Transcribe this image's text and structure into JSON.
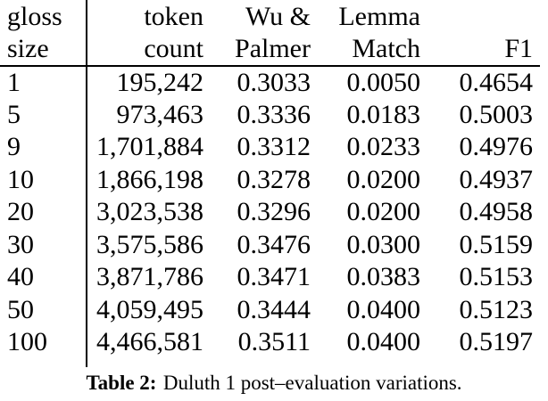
{
  "page": {
    "background_color": "#ffffff",
    "text_color": "#000000",
    "rule_color": "#000000"
  },
  "table": {
    "header": {
      "col1": {
        "line1": "gloss",
        "line2": "size"
      },
      "col2": {
        "line1": "token",
        "line2": "count"
      },
      "col3": {
        "line1": "Wu &",
        "line2": "Palmer"
      },
      "col4": {
        "line1": "Lemma",
        "line2": "Match"
      },
      "col5": {
        "line1": "",
        "line2": "F1"
      }
    },
    "rows": [
      [
        "1",
        "195,242",
        "0.3033",
        "0.0050",
        "0.4654"
      ],
      [
        "5",
        "973,463",
        "0.3336",
        "0.0183",
        "0.5003"
      ],
      [
        "9",
        "1,701,884",
        "0.3312",
        "0.0233",
        "0.4976"
      ],
      [
        "10",
        "1,866,198",
        "0.3278",
        "0.0200",
        "0.4937"
      ],
      [
        "20",
        "3,023,538",
        "0.3296",
        "0.0200",
        "0.4958"
      ],
      [
        "30",
        "3,575,586",
        "0.3476",
        "0.0300",
        "0.5159"
      ],
      [
        "40",
        "3,871,786",
        "0.3471",
        "0.0383",
        "0.5153"
      ],
      [
        "50",
        "4,059,495",
        "0.3444",
        "0.0400",
        "0.5123"
      ],
      [
        "100",
        "4,466,581",
        "0.3511",
        "0.0400",
        "0.5197"
      ]
    ]
  },
  "caption": {
    "label": "Table 2:",
    "text": "Duluth 1 post–evaluation variations."
  }
}
